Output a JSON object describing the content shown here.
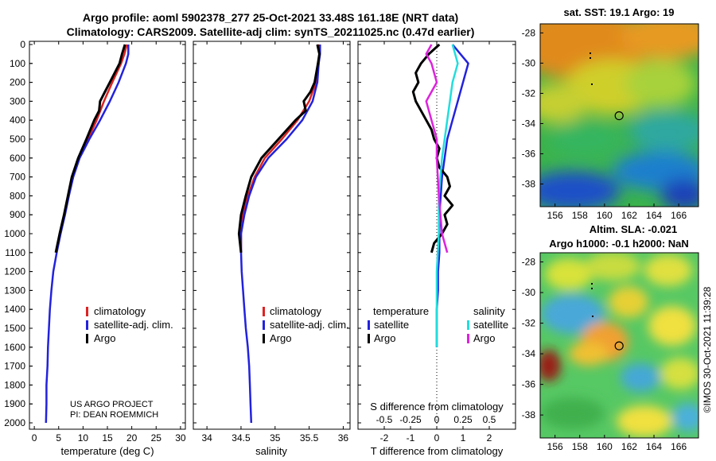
{
  "header": {
    "title_line1": "Argo profile: aoml 5902378_277 25-Oct-2021 33.48S 161.18E (NRT data)",
    "title_line2": "Climatology: CARS2009. Satellite-adj clim: synTS_20211025.nc (0.47d earlier)"
  },
  "depth_axis": {
    "ticks": [
      0,
      100,
      200,
      300,
      400,
      500,
      600,
      700,
      800,
      900,
      1000,
      1100,
      1200,
      1300,
      1400,
      1500,
      1600,
      1700,
      1800,
      1900,
      2000
    ]
  },
  "colors": {
    "climatology": "#dd2222",
    "satellite": "#2222dd",
    "argo": "#000000",
    "sat_salinity": "#22dddd",
    "argo_salinity": "#dd22dd"
  },
  "chart_data": [
    {
      "type": "line",
      "title": "temperature profile",
      "xlabel": "temperature (deg C)",
      "xlim": [
        -1,
        31
      ],
      "xticks": [
        0,
        5,
        10,
        15,
        20,
        25,
        30
      ],
      "ylim": [
        2050,
        0
      ],
      "legend": [
        "climatology",
        "satellite-adj. clim.",
        "Argo"
      ],
      "footer": [
        "US ARGO PROJECT",
        "PI: DEAN ROEMMICH"
      ],
      "series": [
        {
          "name": "climatology",
          "depth": [
            0,
            50,
            100,
            200,
            300,
            400,
            500,
            600,
            700,
            800,
            900,
            1000,
            1100
          ],
          "values": [
            19.0,
            18.5,
            17.8,
            16.0,
            14.3,
            12.8,
            11.0,
            9.0,
            7.8,
            7.0,
            6.2,
            5.3,
            4.5
          ]
        },
        {
          "name": "satellite-adj. clim.",
          "depth": [
            0,
            50,
            100,
            200,
            300,
            400,
            500,
            600,
            700,
            800,
            900,
            1000,
            1100,
            1200,
            1300,
            1400,
            1500,
            1600,
            1700,
            1800,
            1900,
            2000
          ],
          "values": [
            19.3,
            19.3,
            18.8,
            17.3,
            15.5,
            13.5,
            11.3,
            9.3,
            8.0,
            7.1,
            6.3,
            5.4,
            4.6,
            3.9,
            3.5,
            3.2,
            3.0,
            2.8,
            2.7,
            2.5,
            2.5,
            2.4
          ]
        },
        {
          "name": "Argo",
          "depth": [
            0,
            50,
            100,
            200,
            250,
            300,
            350,
            400,
            500,
            600,
            700,
            800,
            900,
            1000,
            1100
          ],
          "values": [
            18.6,
            18.0,
            17.5,
            15.5,
            14.5,
            13.5,
            13.3,
            12.3,
            10.7,
            9.0,
            7.7,
            6.9,
            6.1,
            5.2,
            4.4
          ]
        }
      ]
    },
    {
      "type": "line",
      "title": "salinity profile",
      "xlabel": "salinity",
      "xlim": [
        33.8,
        36.1
      ],
      "xticks": [
        34,
        34.5,
        35,
        35.5,
        36
      ],
      "ylim": [
        2050,
        0
      ],
      "legend": [
        "climatology",
        "satellite-adj. clim.",
        "Argo"
      ],
      "series": [
        {
          "name": "climatology",
          "depth": [
            0,
            50,
            100,
            200,
            300,
            400,
            500,
            600,
            700,
            800,
            900,
            1000,
            1100
          ],
          "values": [
            35.65,
            35.65,
            35.64,
            35.6,
            35.5,
            35.33,
            35.1,
            34.85,
            34.7,
            34.6,
            34.53,
            34.5,
            34.5
          ]
        },
        {
          "name": "satellite-adj. clim.",
          "depth": [
            0,
            50,
            100,
            200,
            300,
            400,
            500,
            600,
            700,
            800,
            900,
            1000,
            1100,
            1200,
            1300,
            1400,
            1500,
            1600,
            1700,
            1800,
            1900,
            2000
          ],
          "values": [
            35.66,
            35.66,
            35.64,
            35.62,
            35.55,
            35.4,
            35.17,
            34.9,
            34.72,
            34.62,
            34.55,
            34.5,
            34.5,
            34.51,
            34.53,
            34.55,
            34.57,
            34.6,
            34.62,
            34.63,
            34.64,
            34.65
          ]
        },
        {
          "name": "Argo",
          "depth": [
            0,
            50,
            100,
            200,
            250,
            300,
            350,
            400,
            500,
            600,
            700,
            800,
            900,
            1000,
            1100
          ],
          "values": [
            35.62,
            35.65,
            35.63,
            35.58,
            35.52,
            35.42,
            35.45,
            35.3,
            35.05,
            34.8,
            34.65,
            34.57,
            34.5,
            34.47,
            34.5
          ]
        }
      ]
    },
    {
      "type": "line",
      "title": "difference from climatology",
      "xlabel": "T difference from climatology",
      "xlabel_top": "S difference from climatology",
      "xlim": [
        -3,
        3
      ],
      "xticks": [
        -2,
        -1,
        0,
        1,
        2
      ],
      "xticks_S": [
        "-0.5",
        "-0.25",
        "0",
        "0.25",
        "0.5"
      ],
      "ylim": [
        2050,
        0
      ],
      "legend_temperature": {
        "title": "temperature",
        "items": [
          "satellite",
          "Argo"
        ]
      },
      "legend_salinity": {
        "title": "salinity",
        "items": [
          "satellite",
          "Argo"
        ]
      },
      "series": [
        {
          "name": "temperature satellite",
          "depth": [
            0,
            50,
            100,
            200,
            300,
            400,
            500,
            600,
            700,
            800,
            900,
            1000,
            1100,
            1200,
            1300,
            1400,
            1500,
            1600
          ],
          "values": [
            0.6,
            0.9,
            1.2,
            1.0,
            0.8,
            0.6,
            0.4,
            0.3,
            0.2,
            0.15,
            0.1,
            0.1,
            0.1,
            0.05,
            0.05,
            0.0,
            0.0,
            0.0
          ]
        },
        {
          "name": "temperature Argo",
          "depth": [
            0,
            50,
            100,
            150,
            200,
            250,
            300,
            350,
            400,
            450,
            500,
            550,
            600,
            650,
            700,
            750,
            800,
            850,
            900,
            950,
            1000,
            1050,
            1100
          ],
          "values": [
            0.1,
            -0.3,
            -0.6,
            -0.8,
            -0.7,
            -0.9,
            -0.8,
            -0.6,
            -0.4,
            -0.2,
            -0.1,
            0.1,
            0.0,
            0.1,
            0.4,
            0.5,
            0.3,
            0.6,
            0.3,
            0.4,
            0.2,
            -0.1,
            -0.2
          ]
        },
        {
          "name": "salinity satellite",
          "depth": [
            0,
            100,
            200,
            400,
            600,
            800,
            1000,
            1200,
            1400,
            1600
          ],
          "values": [
            0.15,
            0.2,
            0.15,
            0.1,
            0.05,
            0.02,
            0.02,
            0.0,
            0.0,
            0.0
          ]
        },
        {
          "name": "salinity Argo",
          "depth": [
            0,
            50,
            100,
            200,
            300,
            400,
            500,
            600,
            800,
            1000,
            1100
          ],
          "values": [
            -0.05,
            -0.1,
            -0.05,
            0.0,
            -0.1,
            -0.05,
            0.0,
            0.0,
            0.02,
            0.05,
            0.1
          ]
        }
      ]
    },
    {
      "type": "heatmap",
      "title": "sat. SST: 19.1 Argo: 19",
      "xticks": [
        156,
        158,
        160,
        162,
        164,
        166
      ],
      "yticks": [
        -28,
        -30,
        -32,
        -34,
        -36,
        -38
      ],
      "xlim": [
        154.8,
        167.6
      ],
      "ylim": [
        -39.5,
        -27.4
      ],
      "float_position": [
        161.18,
        -33.48
      ]
    },
    {
      "type": "heatmap",
      "title_line1": "Altim. SLA: -0.021",
      "title_line2": "Argo h1000: -0.1 h2000: NaN",
      "xticks": [
        156,
        158,
        160,
        162,
        164,
        166
      ],
      "yticks": [
        -28,
        -30,
        -32,
        -34,
        -36,
        -38
      ],
      "xlim": [
        154.8,
        167.6
      ],
      "ylim": [
        -39.5,
        -27.4
      ],
      "float_position": [
        161.18,
        -33.48
      ]
    }
  ],
  "footer_stamp": "©IMOS 30-Oct-2021 11:39:28"
}
